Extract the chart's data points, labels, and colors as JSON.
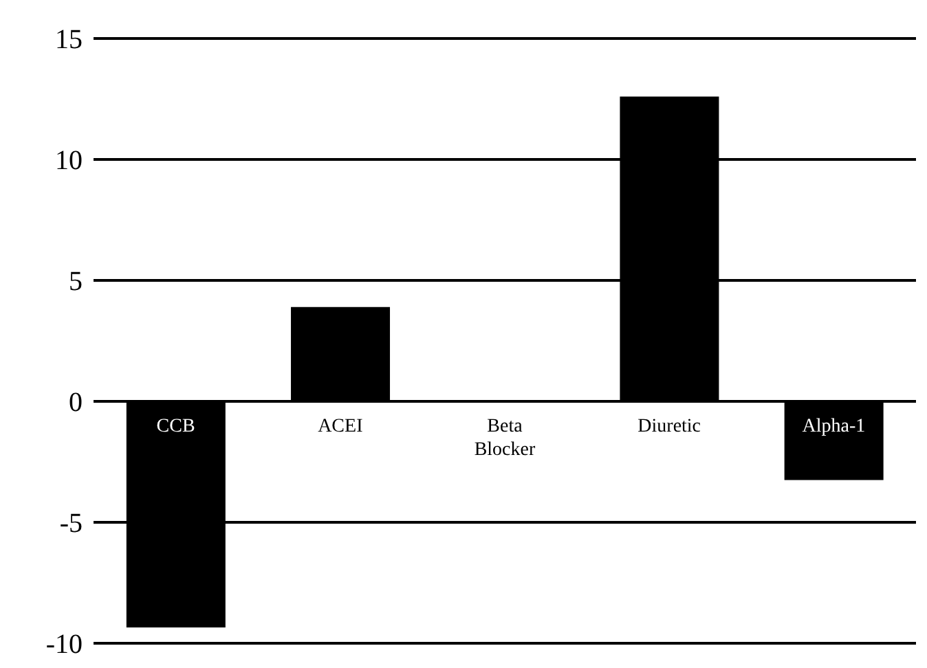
{
  "chart_data": {
    "type": "bar",
    "categories": [
      "CCB",
      "ACEI",
      "Beta Blocker",
      "Diuretic",
      "Alpha-1"
    ],
    "values": [
      -9.35,
      3.9,
      0,
      12.6,
      -3.25
    ],
    "color": "#000000",
    "ylim": [
      -10,
      15
    ],
    "yticks": [
      -10,
      -5,
      0,
      5,
      10,
      15
    ],
    "grid": "y"
  }
}
